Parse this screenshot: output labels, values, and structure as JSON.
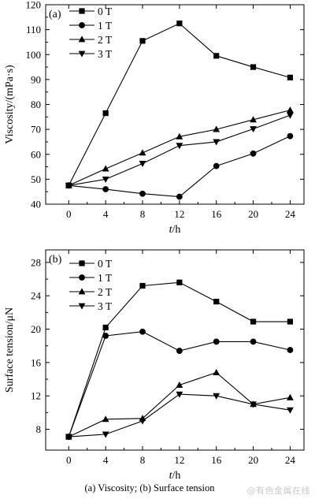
{
  "chart_data": [
    {
      "type": "line",
      "panel_label": "(a)",
      "xlabel_var": "t",
      "xlabel_unit": "/h",
      "ylabel": "Viscosity/(mPa·s)",
      "x": [
        0,
        4,
        8,
        12,
        16,
        20,
        24
      ],
      "xticks": [
        "0",
        "4",
        "8",
        "12",
        "16",
        "20",
        "24"
      ],
      "xlim": [
        -2.5,
        25.5
      ],
      "ylim": [
        40,
        120
      ],
      "yticks": [
        "40",
        "50",
        "60",
        "70",
        "80",
        "90",
        "100",
        "110",
        "120"
      ],
      "legend_position": "top-left",
      "grid": false,
      "series": [
        {
          "name": "0 T",
          "marker": "square",
          "values": [
            47.5,
            76.5,
            105.5,
            112.5,
            99.5,
            95,
            90.8
          ]
        },
        {
          "name": "1 T",
          "marker": "circle",
          "values": [
            47.5,
            46,
            44.2,
            43,
            55.3,
            60.3,
            67.3
          ]
        },
        {
          "name": "2 T",
          "marker": "triangle-up",
          "values": [
            47.5,
            54.2,
            60.6,
            67.1,
            70,
            73.9,
            77.7
          ]
        },
        {
          "name": "3 T",
          "marker": "triangle-down",
          "values": [
            47.5,
            50,
            56.3,
            63.5,
            65,
            70.2,
            75.7
          ]
        }
      ]
    },
    {
      "type": "line",
      "panel_label": "(b)",
      "xlabel_var": "t",
      "xlabel_unit": "/h",
      "ylabel": "Surface tension/μN",
      "x": [
        0,
        4,
        8,
        12,
        16,
        20,
        24
      ],
      "xticks": [
        "0",
        "4",
        "8",
        "12",
        "16",
        "20",
        "24"
      ],
      "xlim": [
        -2.5,
        25.5
      ],
      "ylim": [
        5.5,
        29.5
      ],
      "yticks": [
        "8",
        "12",
        "16",
        "20",
        "24",
        "28"
      ],
      "legend_position": "top-left",
      "grid": false,
      "series": [
        {
          "name": "0 T",
          "marker": "square",
          "values": [
            7.1,
            20.2,
            25.2,
            25.6,
            23.3,
            20.9,
            20.9
          ]
        },
        {
          "name": "1 T",
          "marker": "circle",
          "values": [
            7.1,
            19.2,
            19.7,
            17.4,
            18.5,
            18.5,
            17.5
          ]
        },
        {
          "name": "2 T",
          "marker": "triangle-up",
          "values": [
            7.1,
            9.2,
            9.3,
            13.3,
            14.8,
            11,
            11.8
          ]
        },
        {
          "name": "3 T",
          "marker": "triangle-down",
          "values": [
            7.1,
            7.4,
            9,
            12.2,
            12,
            11,
            10.3
          ]
        }
      ]
    }
  ],
  "caption": "(a) Viscosity; (b) Surface tension",
  "watermark": "@有色金属在线"
}
